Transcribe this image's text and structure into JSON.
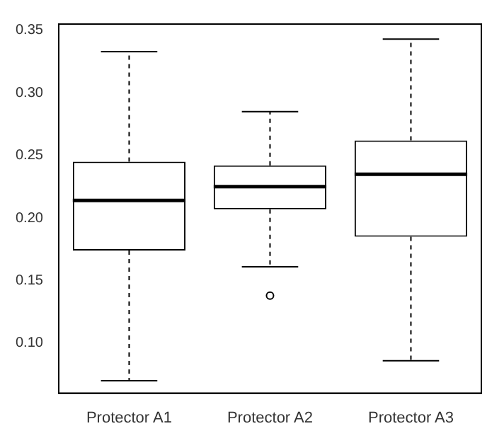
{
  "chart_data": {
    "type": "box",
    "categories": [
      "Protector A1",
      "Protector A2",
      "Protector A3"
    ],
    "boxes": [
      {
        "low": 0.07,
        "q1": 0.174,
        "median": 0.214,
        "q3": 0.245,
        "high": 0.333
      },
      {
        "low": 0.161,
        "q1": 0.207,
        "median": 0.225,
        "q3": 0.242,
        "high": 0.285,
        "outliers": [
          0.138
        ]
      },
      {
        "low": 0.086,
        "q1": 0.185,
        "median": 0.235,
        "q3": 0.262,
        "high": 0.343
      }
    ],
    "color": "#000000",
    "line_style": "dashed",
    "ylim": [
      0.06,
      0.355
    ],
    "yticks": [
      {
        "value": 0.1,
        "label": "0.10"
      },
      0.15,
      {
        "value": 0.2,
        "label": "0.20"
      },
      0.25,
      {
        "value": 0.3,
        "label": "0.30"
      },
      0.35
    ]
  }
}
